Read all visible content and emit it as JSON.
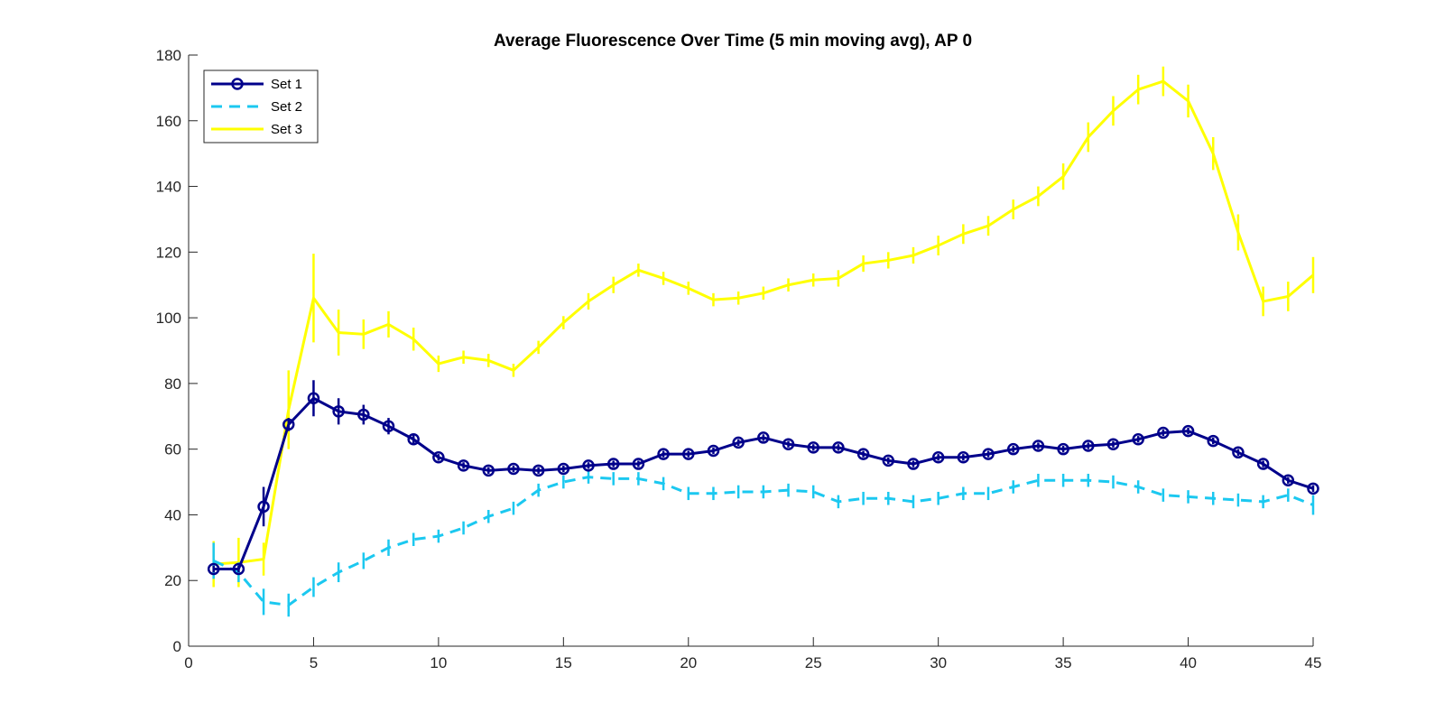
{
  "chart_data": {
    "type": "line",
    "title": "Average Fluorescence Over Time (5 min moving avg), AP 0",
    "xlabel": "",
    "ylabel": "",
    "xlim": [
      0,
      45
    ],
    "ylim": [
      0,
      180
    ],
    "xticks": [
      0,
      5,
      10,
      15,
      20,
      25,
      30,
      35,
      40,
      45
    ],
    "yticks": [
      0,
      20,
      40,
      60,
      80,
      100,
      120,
      140,
      160,
      180
    ],
    "grid": false,
    "legend_position": "top-left",
    "x": [
      1,
      2,
      3,
      4,
      5,
      6,
      7,
      8,
      9,
      10,
      11,
      12,
      13,
      14,
      15,
      16,
      17,
      18,
      19,
      20,
      21,
      22,
      23,
      24,
      25,
      26,
      27,
      28,
      29,
      30,
      31,
      32,
      33,
      34,
      35,
      36,
      37,
      38,
      39,
      40,
      41,
      42,
      43,
      44,
      45
    ],
    "series": [
      {
        "name": "Set 1",
        "color": "#00008B",
        "line_style": "solid",
        "marker": "circle",
        "values": [
          23.5,
          23.5,
          42.5,
          67.5,
          75.5,
          71.5,
          70.5,
          67,
          63,
          57.5,
          55,
          53.5,
          54,
          53.5,
          54,
          55,
          55.5,
          55.5,
          58.5,
          58.5,
          59.5,
          62,
          63.5,
          61.5,
          60.5,
          60.5,
          58.5,
          56.5,
          55.5,
          57.5,
          57.5,
          58.5,
          60,
          61,
          60,
          61,
          61.5,
          63,
          65,
          65.5,
          62.5,
          59,
          55.5,
          50.5,
          48
        ],
        "errors": [
          1,
          1,
          6,
          2,
          5.5,
          4,
          3,
          2.5,
          1.5,
          1,
          1,
          1,
          1,
          1,
          1,
          1,
          1,
          1,
          1,
          1,
          1,
          1,
          1,
          1,
          1,
          1,
          1,
          1,
          1,
          1,
          1,
          1,
          1,
          1,
          1,
          1,
          1,
          1,
          1,
          1,
          1,
          1,
          1,
          1,
          1
        ]
      },
      {
        "name": "Set 2",
        "color": "#1BC8F0",
        "line_style": "dashed",
        "marker": "none",
        "values": [
          26,
          22.5,
          13.5,
          12.5,
          18,
          22.5,
          26,
          30,
          32.5,
          33.5,
          36,
          39.5,
          42,
          47.5,
          50,
          51.5,
          51,
          51,
          49.5,
          46.5,
          46.5,
          47,
          47,
          47.5,
          47,
          44,
          45,
          45,
          44,
          45,
          46.5,
          46.5,
          48.5,
          50.5,
          50.5,
          50.5,
          50,
          48.5,
          46,
          45.5,
          45,
          44.5,
          44,
          46,
          43
        ],
        "errors": [
          5.5,
          3,
          4,
          3.5,
          3,
          3,
          2.5,
          2.5,
          2,
          2,
          2,
          2,
          2,
          2,
          2,
          2,
          2,
          2,
          2,
          2,
          2,
          2,
          2,
          2,
          2,
          2,
          2,
          2,
          2,
          2,
          2,
          2,
          2,
          2,
          2,
          2,
          2,
          2,
          2,
          2,
          2,
          2,
          2,
          2,
          3
        ]
      },
      {
        "name": "Set 3",
        "color": "#FFFF00",
        "line_style": "solid",
        "marker": "none",
        "values": [
          25,
          25.5,
          26.5,
          72,
          106,
          95.5,
          95,
          98,
          93.5,
          86,
          88,
          87,
          84,
          91,
          98.5,
          105,
          110,
          114.5,
          112,
          109,
          105.5,
          106,
          107.5,
          110,
          111.5,
          112,
          116.5,
          117.5,
          119,
          122,
          125.5,
          128,
          133,
          137,
          143,
          155,
          163,
          169.5,
          172,
          166,
          150,
          126,
          105,
          106.5,
          113
        ],
        "errors": [
          7,
          7.5,
          5,
          12,
          13.5,
          7,
          4.5,
          4,
          3.5,
          2.5,
          2,
          2,
          2,
          2,
          2,
          2.5,
          2.5,
          2,
          2,
          2,
          2,
          2,
          2,
          2,
          2,
          2.5,
          2.5,
          2.5,
          2.5,
          3,
          3,
          3,
          3,
          3,
          4,
          4.5,
          4.5,
          4.5,
          4.5,
          5,
          5,
          5.5,
          4.5,
          4.5,
          5.5
        ]
      }
    ]
  }
}
